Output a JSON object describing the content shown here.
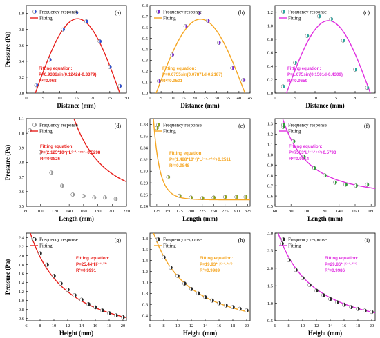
{
  "panel_sizes": [
    {
      "ylabel": "Pressure (Pa)"
    }
  ],
  "colors": {
    "red": "#e8201c",
    "orange": "#f5a623",
    "magenta": "#e02fe0",
    "blue_marker": "#2d4fd8",
    "purple_marker": "#7a2bd0",
    "teal_marker": "#2aa6a0",
    "gray_marker": "#9a9a9a",
    "olive_marker": "#8ea31c",
    "green_marker": "#2e9e3a",
    "black_marker": "#2a2a2a"
  },
  "chart_data": [
    {
      "type": "scatter",
      "letter": "(a)",
      "color": "red",
      "marker": "blue_marker",
      "xlabel": "Distance (mm)",
      "ylabel": "Pressure (Pa)",
      "xlim": [
        0,
        30
      ],
      "ylim": [
        0.0,
        1.1
      ],
      "xticks": [
        0,
        5,
        10,
        15,
        20,
        25,
        30
      ],
      "xtick_labels": [
        "0",
        "5",
        "10",
        "15",
        "20",
        "25",
        "30"
      ],
      "yticks": [
        0.0,
        0.2,
        0.4,
        0.6,
        0.8,
        1.0
      ],
      "ytick_labels": [
        "0.0",
        "0.2",
        "0.4",
        "0.6",
        "0.8",
        "1.0"
      ],
      "legend": [
        "Frequency response",
        "Fitting"
      ],
      "points": {
        "x": [
          3,
          7,
          11,
          15,
          18,
          22,
          25,
          28
        ],
        "y": [
          0.1,
          0.42,
          0.8,
          1.01,
          0.9,
          0.65,
          0.33,
          0.09
        ]
      },
      "fit": {
        "kind": "sin",
        "a": 0.9336,
        "b": 0.1242,
        "c": -0.3379
      },
      "equation": [
        "Fitting equation:",
        "P=0.9336sin(0.1242d-0.3379)",
        "R²=0.968"
      ]
    },
    {
      "type": "scatter",
      "letter": "(b)",
      "color": "orange",
      "marker": "purple_marker",
      "xlabel": "Distance (mm)",
      "ylabel": "",
      "xlim": [
        0,
        45
      ],
      "ylim": [
        0.0,
        0.8
      ],
      "xticks": [
        0,
        5,
        10,
        15,
        20,
        25,
        30,
        35,
        40,
        45
      ],
      "xtick_labels": [
        "0",
        "5",
        "10",
        "15",
        "20",
        "25",
        "30",
        "35",
        "40",
        "45"
      ],
      "yticks": [
        0.0,
        0.1,
        0.2,
        0.3,
        0.4,
        0.5,
        0.6,
        0.7,
        0.8
      ],
      "ytick_labels": [
        "0.0",
        "0.1",
        "0.2",
        "0.3",
        "0.4",
        "0.5",
        "0.6",
        "0.7",
        "0.8"
      ],
      "legend": [
        "Frequency response",
        "Fitting"
      ],
      "points": {
        "x": [
          4,
          10,
          16,
          22,
          26,
          31,
          37,
          42
        ],
        "y": [
          0.11,
          0.35,
          0.61,
          0.73,
          0.66,
          0.46,
          0.23,
          0.12
        ]
      },
      "fit": {
        "kind": "sin",
        "a": 0.6755,
        "b": 0.07871,
        "c": -0.2187
      },
      "equation": [
        "Fitting equation:",
        "P=0.6755sin(0.07871d-0.2187)",
        "R²=0.9501"
      ]
    },
    {
      "type": "scatter",
      "letter": "(c)",
      "color": "magenta",
      "marker": "teal_marker",
      "xlabel": "Distance (mm)",
      "ylabel": "",
      "xlim": [
        0,
        25
      ],
      "ylim": [
        0.0,
        1.3
      ],
      "xticks": [
        0,
        5,
        10,
        15,
        20,
        25
      ],
      "xtick_labels": [
        "0",
        "5",
        "10",
        "15",
        "20",
        "25"
      ],
      "yticks": [
        0.0,
        0.2,
        0.4,
        0.6,
        0.8,
        1.0,
        1.2
      ],
      "ytick_labels": [
        "0.0",
        "0.2",
        "0.4",
        "0.6",
        "0.8",
        "1.0",
        "1.2"
      ],
      "legend": [
        "Frequency response",
        "Fitting"
      ],
      "points": {
        "x": [
          2,
          5,
          8,
          11,
          14,
          17,
          20,
          23
        ],
        "y": [
          0.1,
          0.45,
          0.85,
          1.14,
          1.1,
          0.78,
          0.35,
          0.08
        ]
      },
      "fit": {
        "kind": "sin",
        "a": 1.075,
        "b": 0.1501,
        "c": -0.4309
      },
      "equation": [
        "Fitting equation:",
        "P=1.075sin(0.1501d-0.4309)",
        "R²=0.9659"
      ]
    },
    {
      "type": "scatter",
      "letter": "(d)",
      "color": "red",
      "marker": "gray_marker",
      "xlabel": "Length (mm)",
      "ylabel": "Pressure (Pa)",
      "xlim": [
        80,
        220
      ],
      "ylim": [
        0.5,
        1.1
      ],
      "xticks": [
        80,
        100,
        120,
        140,
        160,
        180,
        200,
        220
      ],
      "xtick_labels": [
        "80",
        "100",
        "120",
        "140",
        "160",
        "180",
        "200",
        "220"
      ],
      "yticks": [
        0.5,
        0.6,
        0.7,
        0.8,
        0.9,
        1.0,
        1.1
      ],
      "ytick_labels": [
        "0.5",
        "0.6",
        "0.7",
        "0.8",
        "0.9",
        "1.0",
        "1.1"
      ],
      "legend": [
        "Frequency response",
        "Fitting"
      ],
      "points": {
        "x": [
          85,
          100,
          115,
          130,
          145,
          160,
          175,
          190,
          205
        ],
        "y": [
          1.02,
          0.87,
          0.73,
          0.64,
          0.58,
          0.57,
          0.56,
          0.56,
          0.55
        ]
      },
      "fit": {
        "kind": "power",
        "k": 21250000.0,
        "n": -3.495,
        "c": 0.5298
      },
      "equation": [
        "Fitting equation:",
        "P=(2.125*10⁷)*L⁽⁻³·⁴⁹⁵⁾+0.5298",
        "R²=0.9826"
      ]
    },
    {
      "type": "scatter",
      "letter": "(e)",
      "color": "orange",
      "marker": "olive_marker",
      "xlabel": "Length (mm)",
      "ylabel": "",
      "xlim": [
        110,
        330
      ],
      "ylim": [
        0.24,
        0.39
      ],
      "xticks": [
        125,
        150,
        175,
        200,
        225,
        250,
        275,
        300,
        325
      ],
      "xtick_labels": [
        "125",
        "150",
        "175",
        "200",
        "225",
        "250",
        "275",
        "300",
        "325"
      ],
      "yticks": [
        0.24,
        0.26,
        0.28,
        0.3,
        0.32,
        0.34,
        0.36,
        0.38
      ],
      "ytick_labels": [
        "0.24",
        "0.26",
        "0.28",
        "0.30",
        "0.32",
        "0.34",
        "0.36",
        "0.38"
      ],
      "legend": [
        "Frequency response",
        "Fitting"
      ],
      "points": {
        "x": [
          125,
          150,
          175,
          200,
          225,
          250,
          275,
          300,
          320
        ],
        "y": [
          0.374,
          0.29,
          0.258,
          0.255,
          0.254,
          0.255,
          0.256,
          0.256,
          0.256
        ]
      },
      "fit": {
        "kind": "power",
        "k": 1.488e+17,
        "n": -8.708,
        "c": 0.2511
      },
      "equation": [
        "Fitting equation:",
        "P=(1.488*10¹⁷)*L⁽⁻⁸·⁷⁰⁸⁾+0.2511",
        "R²=0.9848"
      ]
    },
    {
      "type": "scatter",
      "letter": "(f)",
      "color": "magenta",
      "marker": "green_marker",
      "xlabel": "Length (mm)",
      "ylabel": "",
      "xlim": [
        60,
        185
      ],
      "ylim": [
        0.5,
        1.35
      ],
      "xticks": [
        60,
        80,
        100,
        120,
        140,
        160,
        180
      ],
      "xtick_labels": [
        "60",
        "80",
        "100",
        "120",
        "140",
        "160",
        "180"
      ],
      "yticks": [
        0.5,
        0.6,
        0.7,
        0.8,
        0.9,
        1.0,
        1.1,
        1.2,
        1.3
      ],
      "ytick_labels": [
        "0.5",
        "0.6",
        "0.7",
        "0.8",
        "0.9",
        "1.0",
        "1.1",
        "1.2",
        "1.3"
      ],
      "legend": [
        "Frequency response",
        "Fitting"
      ],
      "points": {
        "x": [
          70,
          83,
          96,
          109,
          122,
          135,
          148,
          161,
          175
        ],
        "y": [
          1.27,
          1.13,
          0.98,
          0.87,
          0.8,
          0.73,
          0.71,
          0.7,
          0.71
        ]
      },
      "fit": {
        "kind": "power",
        "k": 7553,
        "n": -2.166,
        "c": 0.5793
      },
      "equation": [
        "Fitting equation:",
        "P=7553*L⁽⁻²·¹⁶⁶⁾+0.5793",
        "R²=0.9814"
      ]
    },
    {
      "type": "scatter",
      "letter": "(g)",
      "color": "red",
      "marker": "black_marker",
      "xlabel": "Height (mm)",
      "ylabel": "Pressure (Pa)",
      "xlim": [
        6,
        20.5
      ],
      "ylim": [
        0.55,
        2.5
      ],
      "xticks": [
        6,
        8,
        10,
        12,
        14,
        16,
        18,
        20
      ],
      "xtick_labels": [
        "6",
        "8",
        "10",
        "12",
        "14",
        "16",
        "18",
        "20"
      ],
      "yticks": [
        0.6,
        0.8,
        1.0,
        1.2,
        1.4,
        1.6,
        1.8,
        2.0,
        2.2,
        2.4
      ],
      "ytick_labels": [
        "0.6",
        "0.8",
        "1.0",
        "1.2",
        "1.4",
        "1.6",
        "1.8",
        "2.0",
        "2.2",
        "2.4"
      ],
      "legend": [
        "Frequency response",
        "Fitting"
      ],
      "points": {
        "x": [
          7,
          8,
          9,
          10,
          11,
          12,
          13,
          14,
          15,
          16,
          17,
          18,
          19,
          20
        ],
        "y": [
          2.38,
          2.05,
          1.8,
          1.55,
          1.38,
          1.24,
          1.12,
          1.02,
          0.92,
          0.85,
          0.78,
          0.72,
          0.67,
          0.63
        ]
      },
      "fit": {
        "kind": "powerpure",
        "k": 25.44,
        "n": -1.23
      },
      "equation": [
        "Fitting equation:",
        "P=25.44*H⁽⁻¹·²³⁾",
        "R²=0.9991"
      ]
    },
    {
      "type": "scatter",
      "letter": "(h)",
      "color": "orange",
      "marker": "black_marker",
      "xlabel": "Height (mm)",
      "ylabel": "",
      "xlim": [
        6,
        20.5
      ],
      "ylim": [
        0.3,
        1.9
      ],
      "xticks": [
        6,
        8,
        10,
        12,
        14,
        16,
        18,
        20
      ],
      "xtick_labels": [
        "6",
        "8",
        "10",
        "12",
        "14",
        "16",
        "18",
        "20"
      ],
      "yticks": [
        0.4,
        0.6,
        0.8,
        1.0,
        1.2,
        1.4,
        1.6,
        1.8
      ],
      "ytick_labels": [
        "0.4",
        "0.6",
        "0.8",
        "1.0",
        "1.2",
        "1.4",
        "1.6",
        "1.8"
      ],
      "legend": [
        "Frequency response",
        "Fitting"
      ],
      "points": {
        "x": [
          7,
          8,
          9,
          10,
          11,
          12,
          13,
          14,
          15,
          16,
          17,
          18,
          19,
          20
        ],
        "y": [
          1.78,
          1.46,
          1.27,
          1.12,
          0.98,
          0.88,
          0.8,
          0.73,
          0.67,
          0.62,
          0.58,
          0.55,
          0.52,
          0.49
        ]
      },
      "fit": {
        "kind": "powerpure",
        "k": 19.93,
        "n": -1.252
      },
      "equation": [
        "Fitting equation:",
        "P=19.93*H⁽⁻¹·²⁵²⁾",
        "R²=0.9989"
      ]
    },
    {
      "type": "scatter",
      "letter": "(i)",
      "color": "magenta",
      "marker": "black_marker",
      "xlabel": "Height (mm)",
      "ylabel": "",
      "xlim": [
        6,
        20.5
      ],
      "ylim": [
        0.5,
        3.0
      ],
      "xticks": [
        6,
        8,
        10,
        12,
        14,
        16,
        18,
        20
      ],
      "xtick_labels": [
        "6",
        "8",
        "10",
        "12",
        "14",
        "16",
        "18",
        "20"
      ],
      "yticks": [
        0.5,
        1.0,
        1.5,
        2.0,
        2.5,
        3.0
      ],
      "ytick_labels": [
        "0.5",
        "1.0",
        "1.5",
        "2.0",
        "2.5",
        "3.0"
      ],
      "legend": [
        "Frequency response",
        "Fitting"
      ],
      "points": {
        "x": [
          7,
          8,
          9,
          10,
          11,
          12,
          13,
          14,
          15,
          16,
          17,
          18,
          19,
          20
        ],
        "y": [
          2.7,
          2.23,
          1.95,
          1.72,
          1.52,
          1.36,
          1.23,
          1.12,
          1.03,
          0.96,
          0.89,
          0.84,
          0.79,
          0.75
        ]
      },
      "fit": {
        "kind": "powerpure",
        "k": 29.86,
        "n": -1.231
      },
      "equation": [
        "Fitting equation:",
        "P=29.86*H⁽⁻¹·²³¹⁾",
        "R²=0.9986"
      ]
    }
  ]
}
